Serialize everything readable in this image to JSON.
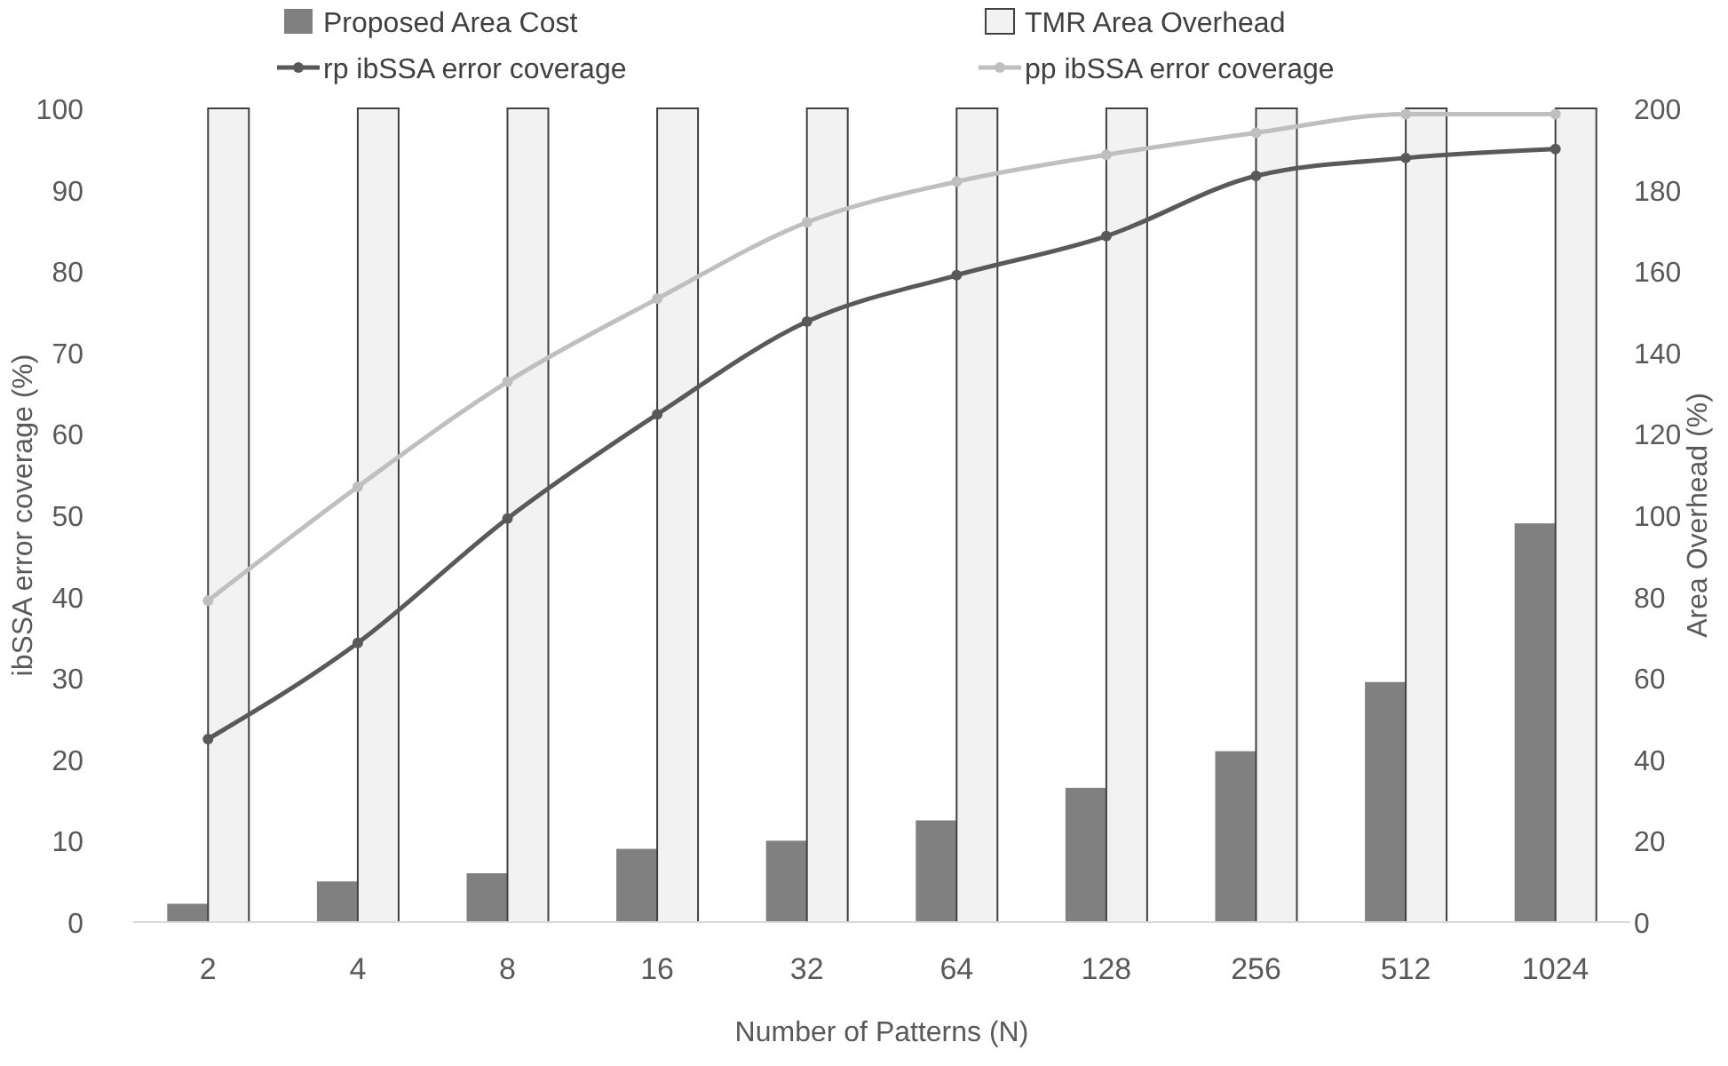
{
  "chart_data": {
    "type": "bar",
    "xlabel": "Number of Patterns (N)",
    "ylabel": "ibSSA error coverage (%)",
    "y2label": "Area Overhead (%)",
    "categories": [
      "2",
      "4",
      "8",
      "16",
      "32",
      "64",
      "128",
      "256",
      "512",
      "1024"
    ],
    "series": [
      {
        "name": "Proposed Area Cost",
        "axis": "y2",
        "color": "#808080",
        "values": [
          4.5,
          10,
          12,
          18,
          20,
          25,
          33,
          42,
          59,
          98
        ]
      },
      {
        "name": "TMR Area Overhead",
        "axis": "y2",
        "color": "#f2f2f2",
        "values": [
          200,
          200,
          200,
          200,
          200,
          200,
          200,
          200,
          200,
          200
        ]
      },
      {
        "name": "rp ibSSA error coverage",
        "type": "line",
        "color": "#595959",
        "values": [
          22.5,
          34.3,
          49.6,
          62.4,
          73.8,
          79.5,
          84.3,
          91.7,
          93.9,
          95
        ]
      },
      {
        "name": "pp ibSSA error coverage",
        "type": "line",
        "color": "#bfbfbf",
        "values": [
          39.5,
          53.5,
          66.4,
          76.6,
          86,
          91,
          94.3,
          97,
          99.3,
          99.3
        ]
      }
    ],
    "ylim": [
      0,
      100
    ],
    "yticks": [
      0,
      10,
      20,
      30,
      40,
      50,
      60,
      70,
      80,
      90,
      100
    ],
    "y2lim": [
      0,
      200
    ],
    "y2ticks": [
      0,
      20,
      40,
      60,
      80,
      100,
      120,
      140,
      160,
      180,
      200
    ],
    "grid": false,
    "legend": "top",
    "marker": "circle",
    "line_style": "solid"
  }
}
